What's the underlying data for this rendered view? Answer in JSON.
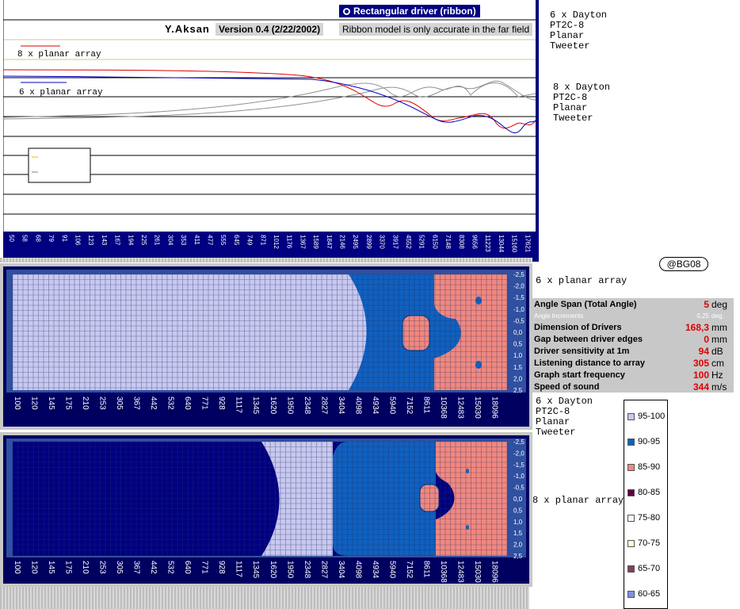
{
  "header": {
    "author": "Y.Aksan",
    "version": "Version 0.4 (2/22/2002)",
    "mode_label": "Rectangular driver (ribbon)",
    "note": "Ribbon model is only accurate in the far field"
  },
  "top_chart": {
    "legend": [
      "8 x planar array",
      "6 x planar array"
    ],
    "x_ticks": [
      "50",
      "58",
      "68",
      "79",
      "91",
      "106",
      "123",
      "143",
      "167",
      "194",
      "225",
      "261",
      "304",
      "353",
      "411",
      "477",
      "555",
      "645",
      "749",
      "871",
      "1012",
      "1176",
      "1367",
      "1589",
      "1847",
      "2146",
      "2495",
      "2899",
      "3370",
      "3917",
      "4552",
      "5291",
      "6150",
      "7148",
      "8308",
      "9656",
      "11223",
      "13044",
      "15160",
      "17621"
    ]
  },
  "side_labels": {
    "top_a": "6 x Dayton\nPT2C-8\nPlanar\nTweeter",
    "top_b": "8 x Dayton\nPT2C-8\nPlanar\nTweeter",
    "mid_a": "6 x planar array",
    "mid_b": "6 x Dayton\nPT2C-8\nPlanar\nTweeter",
    "bottom": "8 x planar array",
    "badge": "@BG08"
  },
  "params": [
    {
      "label": "Angle Span (Total Angle)",
      "value": "5",
      "unit": "deg"
    },
    {
      "label": "Angle Increments",
      "value": "0,25",
      "unit": "deg.",
      "small": true
    },
    {
      "label": "Dimension of Drivers",
      "value": "168,3",
      "unit": "mm"
    },
    {
      "label": "Gap between driver edges",
      "value": "0",
      "unit": "mm"
    },
    {
      "label": "Driver sensitivity at 1m",
      "value": "94",
      "unit": "dB"
    },
    {
      "label": "Listening distance to array",
      "value": "305",
      "unit": "cm"
    },
    {
      "label": "Graph start frequency",
      "value": "100",
      "unit": "Hz"
    },
    {
      "label": "Speed of sound",
      "value": "344",
      "unit": "m/s"
    }
  ],
  "heatmap": {
    "x_ticks": [
      "100",
      "120",
      "145",
      "175",
      "210",
      "253",
      "305",
      "367",
      "442",
      "532",
      "640",
      "771",
      "928",
      "1117",
      "1345",
      "1620",
      "1950",
      "2348",
      "2827",
      "3404",
      "4098",
      "4934",
      "5940",
      "7152",
      "8611",
      "10368",
      "12483",
      "15030",
      "18096"
    ],
    "y_ticks": [
      "-2,5",
      "-2,0",
      "-1,5",
      "-1,0",
      "-0,5",
      "0,0",
      "0,5",
      "1,0",
      "1,5",
      "2,0",
      "2,5"
    ]
  },
  "legend": {
    "items": [
      {
        "label": "95-100",
        "color": "#c8c8f0"
      },
      {
        "label": "90-95",
        "color": "#1060c0"
      },
      {
        "label": "85-90",
        "color": "#f08880"
      },
      {
        "label": "80-85",
        "color": "#600040"
      },
      {
        "label": "75-80",
        "color": "#f0f8ff"
      },
      {
        "label": "70-75",
        "color": "#ffffe0"
      },
      {
        "label": "65-70",
        "color": "#804060"
      },
      {
        "label": "60-65",
        "color": "#8090e0"
      }
    ]
  },
  "colors": {
    "navy": "#000080",
    "zone_light": "#c8c8f0",
    "zone_blue": "#1060c0",
    "zone_salmon": "#f08880",
    "zone_dark": "#000080"
  }
}
